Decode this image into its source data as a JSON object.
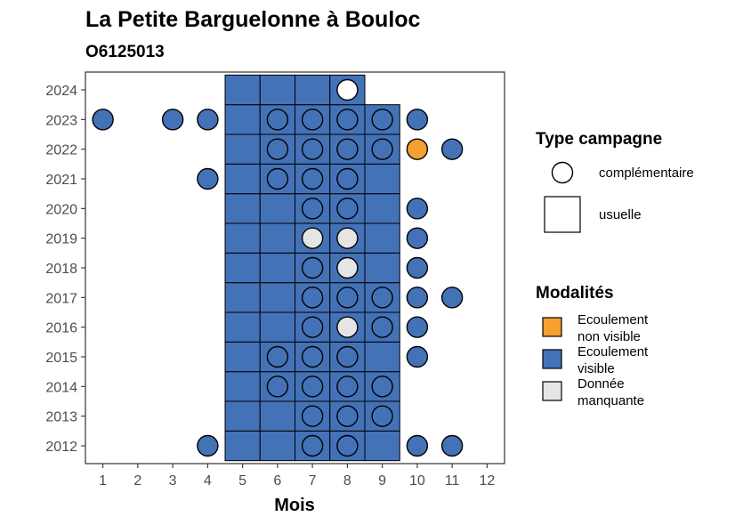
{
  "chart_data": {
    "type": "heatmap",
    "title": "La Petite Barguelonne à Bouloc",
    "subtitle": "O6125013",
    "xlabel": "Mois",
    "ylabel": "",
    "x_ticks": [
      1,
      2,
      3,
      4,
      5,
      6,
      7,
      8,
      9,
      10,
      11,
      12
    ],
    "y_ticks": [
      2012,
      2013,
      2014,
      2015,
      2016,
      2017,
      2018,
      2019,
      2020,
      2021,
      2022,
      2023,
      2024
    ],
    "xlim": [
      0.5,
      12.5
    ],
    "ylim": [
      2011.4,
      2024.6
    ],
    "grid": false,
    "colors": {
      "Ecoulement non visible": "#f5a031",
      "Ecoulement visible": "#4472b7",
      "Donnée manquante": "#e5e5e5"
    },
    "legend": {
      "position": "right",
      "shape_title": "Type campagne",
      "shape_entries": [
        {
          "label": "complémentaire",
          "shape": "circle"
        },
        {
          "label": "usuelle",
          "shape": "square"
        }
      ],
      "fill_title": "Modalités",
      "fill_entries": [
        {
          "label_lines": [
            "Ecoulement",
            "non visible"
          ],
          "value": "Ecoulement non visible"
        },
        {
          "label_lines": [
            "Ecoulement",
            "visible"
          ],
          "value": "Ecoulement visible"
        },
        {
          "label_lines": [
            "Donnée",
            "manquante"
          ],
          "value": "Donnée manquante"
        }
      ]
    },
    "usuelle": [
      {
        "year": 2012,
        "months": [
          5,
          6,
          7,
          8,
          9
        ],
        "value": "Ecoulement visible"
      },
      {
        "year": 2013,
        "months": [
          5,
          6,
          7,
          8,
          9
        ],
        "value": "Ecoulement visible"
      },
      {
        "year": 2014,
        "months": [
          5,
          6,
          7,
          8,
          9
        ],
        "value": "Ecoulement visible"
      },
      {
        "year": 2015,
        "months": [
          5,
          6,
          7,
          8,
          9
        ],
        "value": "Ecoulement visible"
      },
      {
        "year": 2016,
        "months": [
          5,
          6,
          7,
          8,
          9
        ],
        "value": "Ecoulement visible"
      },
      {
        "year": 2017,
        "months": [
          5,
          6,
          7,
          8,
          9
        ],
        "value": "Ecoulement visible"
      },
      {
        "year": 2018,
        "months": [
          5,
          6,
          7,
          8,
          9
        ],
        "value": "Ecoulement visible"
      },
      {
        "year": 2019,
        "months": [
          5,
          6,
          7,
          8,
          9
        ],
        "value": "Ecoulement visible"
      },
      {
        "year": 2020,
        "months": [
          5,
          6,
          7,
          8,
          9
        ],
        "value": "Ecoulement visible"
      },
      {
        "year": 2021,
        "months": [
          5,
          6,
          7,
          8,
          9
        ],
        "value": "Ecoulement visible"
      },
      {
        "year": 2022,
        "months": [
          5,
          6,
          7,
          8,
          9
        ],
        "value": "Ecoulement visible"
      },
      {
        "year": 2023,
        "months": [
          5,
          6,
          7,
          8,
          9
        ],
        "value": "Ecoulement visible"
      },
      {
        "year": 2024,
        "months": [
          5,
          6,
          7,
          8
        ],
        "value": "Ecoulement visible"
      }
    ],
    "complementaire": [
      {
        "year": 2024,
        "month": 8,
        "value": "none"
      },
      {
        "year": 2023,
        "month": 1,
        "value": "Ecoulement visible"
      },
      {
        "year": 2023,
        "month": 3,
        "value": "Ecoulement visible"
      },
      {
        "year": 2023,
        "month": 4,
        "value": "Ecoulement visible"
      },
      {
        "year": 2023,
        "month": 6,
        "value": "Ecoulement visible"
      },
      {
        "year": 2023,
        "month": 7,
        "value": "Ecoulement visible"
      },
      {
        "year": 2023,
        "month": 8,
        "value": "Ecoulement visible"
      },
      {
        "year": 2023,
        "month": 9,
        "value": "Ecoulement visible"
      },
      {
        "year": 2023,
        "month": 10,
        "value": "Ecoulement visible"
      },
      {
        "year": 2022,
        "month": 6,
        "value": "Ecoulement visible"
      },
      {
        "year": 2022,
        "month": 7,
        "value": "Ecoulement visible"
      },
      {
        "year": 2022,
        "month": 8,
        "value": "Ecoulement visible"
      },
      {
        "year": 2022,
        "month": 9,
        "value": "Ecoulement visible"
      },
      {
        "year": 2022,
        "month": 10,
        "value": "Ecoulement non visible"
      },
      {
        "year": 2022,
        "month": 11,
        "value": "Ecoulement visible"
      },
      {
        "year": 2021,
        "month": 4,
        "value": "Ecoulement visible"
      },
      {
        "year": 2021,
        "month": 6,
        "value": "Ecoulement visible"
      },
      {
        "year": 2021,
        "month": 7,
        "value": "Ecoulement visible"
      },
      {
        "year": 2021,
        "month": 8,
        "value": "Ecoulement visible"
      },
      {
        "year": 2020,
        "month": 7,
        "value": "Ecoulement visible"
      },
      {
        "year": 2020,
        "month": 8,
        "value": "Ecoulement visible"
      },
      {
        "year": 2020,
        "month": 10,
        "value": "Ecoulement visible"
      },
      {
        "year": 2019,
        "month": 7,
        "value": "Donnée manquante"
      },
      {
        "year": 2019,
        "month": 8,
        "value": "Donnée manquante"
      },
      {
        "year": 2019,
        "month": 10,
        "value": "Ecoulement visible"
      },
      {
        "year": 2018,
        "month": 7,
        "value": "Ecoulement visible"
      },
      {
        "year": 2018,
        "month": 8,
        "value": "Donnée manquante"
      },
      {
        "year": 2018,
        "month": 10,
        "value": "Ecoulement visible"
      },
      {
        "year": 2017,
        "month": 7,
        "value": "Ecoulement visible"
      },
      {
        "year": 2017,
        "month": 8,
        "value": "Ecoulement visible"
      },
      {
        "year": 2017,
        "month": 9,
        "value": "Ecoulement visible"
      },
      {
        "year": 2017,
        "month": 10,
        "value": "Ecoulement visible"
      },
      {
        "year": 2017,
        "month": 11,
        "value": "Ecoulement visible"
      },
      {
        "year": 2016,
        "month": 7,
        "value": "Ecoulement visible"
      },
      {
        "year": 2016,
        "month": 8,
        "value": "Donnée manquante"
      },
      {
        "year": 2016,
        "month": 9,
        "value": "Ecoulement visible"
      },
      {
        "year": 2016,
        "month": 10,
        "value": "Ecoulement visible"
      },
      {
        "year": 2015,
        "month": 6,
        "value": "Ecoulement visible"
      },
      {
        "year": 2015,
        "month": 7,
        "value": "Ecoulement visible"
      },
      {
        "year": 2015,
        "month": 8,
        "value": "Ecoulement visible"
      },
      {
        "year": 2015,
        "month": 10,
        "value": "Ecoulement visible"
      },
      {
        "year": 2014,
        "month": 6,
        "value": "Ecoulement visible"
      },
      {
        "year": 2014,
        "month": 7,
        "value": "Ecoulement visible"
      },
      {
        "year": 2014,
        "month": 8,
        "value": "Ecoulement visible"
      },
      {
        "year": 2014,
        "month": 9,
        "value": "Ecoulement visible"
      },
      {
        "year": 2013,
        "month": 7,
        "value": "Ecoulement visible"
      },
      {
        "year": 2013,
        "month": 8,
        "value": "Ecoulement visible"
      },
      {
        "year": 2013,
        "month": 9,
        "value": "Ecoulement visible"
      },
      {
        "year": 2012,
        "month": 4,
        "value": "Ecoulement visible"
      },
      {
        "year": 2012,
        "month": 7,
        "value": "Ecoulement visible"
      },
      {
        "year": 2012,
        "month": 8,
        "value": "Ecoulement visible"
      },
      {
        "year": 2012,
        "month": 10,
        "value": "Ecoulement visible"
      },
      {
        "year": 2012,
        "month": 11,
        "value": "Ecoulement visible"
      }
    ]
  }
}
